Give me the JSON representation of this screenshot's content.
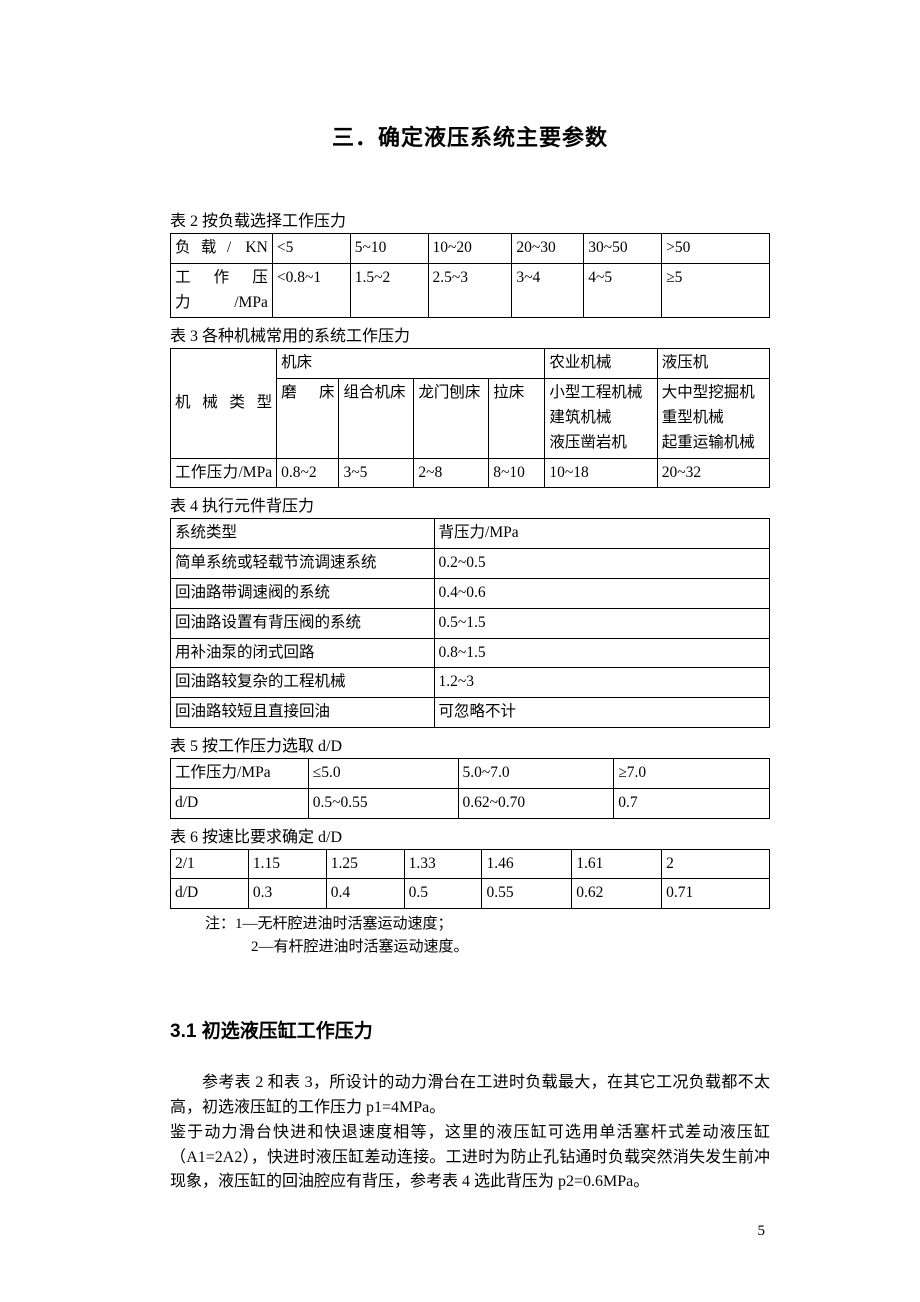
{
  "title": "三．确定液压系统主要参数",
  "table2": {
    "caption": "表 2  按负载选择工作压力",
    "rows": [
      [
        "负载/ KN",
        "<5",
        "5~10",
        "10~20",
        "20~30",
        "30~50",
        ">50"
      ],
      [
        "工作压力/MPa",
        "<0.8~1",
        "1.5~2",
        "2.5~3",
        "3~4",
        "4~5",
        "≥5"
      ]
    ]
  },
  "table3": {
    "caption": "表 3  各种机械常用的系统工作压力",
    "header_label": "机械类型",
    "group_headers": [
      "机床",
      "农业机械",
      "液压机"
    ],
    "sub_headers": [
      "磨床",
      "组合机床",
      "龙门刨床",
      "拉床",
      "小型工程机械\n建筑机械\n液压凿岩机",
      "大中型挖掘机\n重型机械\n起重运输机械"
    ],
    "pressure_row": [
      "工作压力/MPa",
      "0.8~2",
      "3~5",
      "2~8",
      "8~10",
      "10~18",
      "20~32"
    ]
  },
  "table4": {
    "caption": "表 4  执行元件背压力",
    "header": [
      "系统类型",
      "背压力/MPa"
    ],
    "rows": [
      [
        "简单系统或轻载节流调速系统",
        "0.2~0.5"
      ],
      [
        "回油路带调速阀的系统",
        "0.4~0.6"
      ],
      [
        "回油路设置有背压阀的系统",
        "0.5~1.5"
      ],
      [
        "用补油泵的闭式回路",
        "0.8~1.5"
      ],
      [
        "回油路较复杂的工程机械",
        "1.2~3"
      ],
      [
        "回油路较短且直接回油",
        "可忽略不计"
      ]
    ]
  },
  "table5": {
    "caption": "表 5  按工作压力选取 d/D",
    "rows": [
      [
        "工作压力/MPa",
        "≤5.0",
        "5.0~7.0",
        "≥7.0"
      ],
      [
        "d/D",
        "0.5~0.55",
        "0.62~0.70",
        "0.7"
      ]
    ]
  },
  "table6": {
    "caption": "表 6  按速比要求确定 d/D",
    "rows": [
      [
        "2/1",
        "1.15",
        "1.25",
        "1.33",
        "1.46",
        "1.61",
        "2"
      ],
      [
        "d/D",
        "0.3",
        "0.4",
        "0.5",
        "0.55",
        "0.62",
        "0.71"
      ]
    ]
  },
  "notes": {
    "line1": "注：1—无杆腔进油时活塞运动速度；",
    "line2": "2—有杆腔进油时活塞运动速度。"
  },
  "section": {
    "heading": "3.1 初选液压缸工作压力",
    "p1": "参考表 2 和表 3，所设计的动力滑台在工进时负载最大，在其它工况负载都不太高，初选液压缸的工作压力 p1=4MPa。",
    "p2": "鉴于动力滑台快进和快退速度相等，这里的液压缸可选用单活塞杆式差动液压缸（A1=2A2），快进时液压缸差动连接。工进时为防止孔钻通时负载突然消失发生前冲现象，液压缸的回油腔应有背压，参考表 4 选此背压为 p2=0.6MPa。"
  },
  "page_number": "5"
}
